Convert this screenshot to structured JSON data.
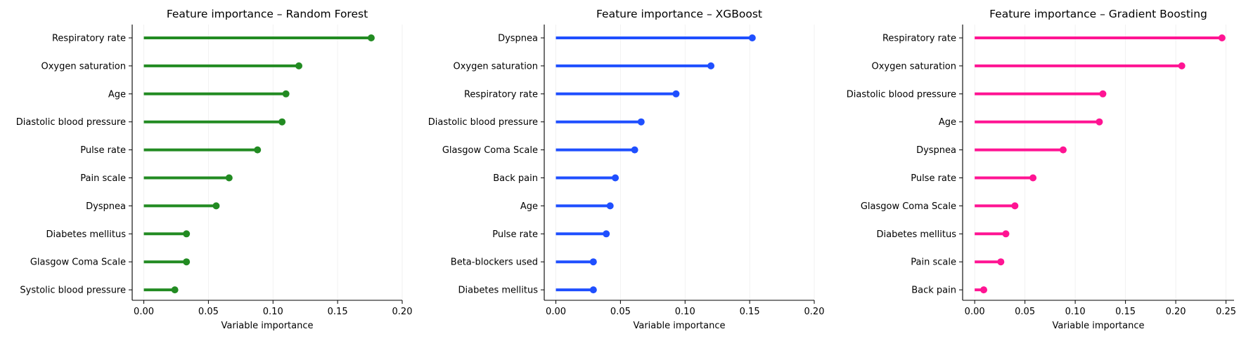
{
  "chart_data": [
    {
      "type": "lollipop",
      "title": "Feature importance – Random Forest",
      "xlabel": "Variable importance",
      "xlim": [
        -0.009,
        0.2
      ],
      "xticks": [
        "0.00",
        "0.05",
        "0.10",
        "0.15",
        "0.20"
      ],
      "xtick_values": [
        0,
        0.05,
        0.1,
        0.15,
        0.2
      ],
      "color": "#228b22",
      "grid": "vertical, faint",
      "categories": [
        "Respiratory rate",
        "Oxygen saturation",
        "Age",
        "Diastolic blood pressure",
        "Pulse rate",
        "Pain scale",
        "Dyspnea",
        "Diabetes mellitus",
        "Glasgow Coma Scale",
        "Systolic blood pressure"
      ],
      "values": [
        0.176,
        0.12,
        0.11,
        0.107,
        0.088,
        0.066,
        0.056,
        0.033,
        0.033,
        0.024
      ]
    },
    {
      "type": "lollipop",
      "title": "Feature importance – XGBoost",
      "xlabel": "Variable importance",
      "xlim": [
        -0.009,
        0.2
      ],
      "xticks": [
        "0.00",
        "0.05",
        "0.10",
        "0.15",
        "0.20"
      ],
      "xtick_values": [
        0,
        0.05,
        0.1,
        0.15,
        0.2
      ],
      "color": "#1f4fff",
      "grid": "vertical, faint",
      "categories": [
        "Dyspnea",
        "Oxygen saturation",
        "Respiratory rate",
        "Diastolic blood pressure",
        "Glasgow Coma Scale",
        "Back pain",
        "Age",
        "Pulse rate",
        "Beta-blockers used",
        "Diabetes mellitus"
      ],
      "values": [
        0.152,
        0.12,
        0.093,
        0.066,
        0.061,
        0.046,
        0.042,
        0.039,
        0.029,
        0.029
      ]
    },
    {
      "type": "lollipop",
      "title": "Feature importance – Gradient Boosting",
      "xlabel": "Variable importance",
      "xlim": [
        -0.012,
        0.258
      ],
      "xticks": [
        "0.00",
        "0.05",
        "0.10",
        "0.15",
        "0.20",
        "0.25"
      ],
      "xtick_values": [
        0,
        0.05,
        0.1,
        0.15,
        0.2,
        0.25
      ],
      "color": "#ff1493",
      "grid": "vertical, faint",
      "categories": [
        "Respiratory rate",
        "Oxygen saturation",
        "Diastolic blood pressure",
        "Age",
        "Dyspnea",
        "Pulse rate",
        "Glasgow Coma Scale",
        "Diabetes mellitus",
        "Pain scale",
        "Back pain"
      ],
      "values": [
        0.246,
        0.206,
        0.1275,
        0.124,
        0.088,
        0.058,
        0.04,
        0.031,
        0.026,
        0.009
      ]
    }
  ]
}
